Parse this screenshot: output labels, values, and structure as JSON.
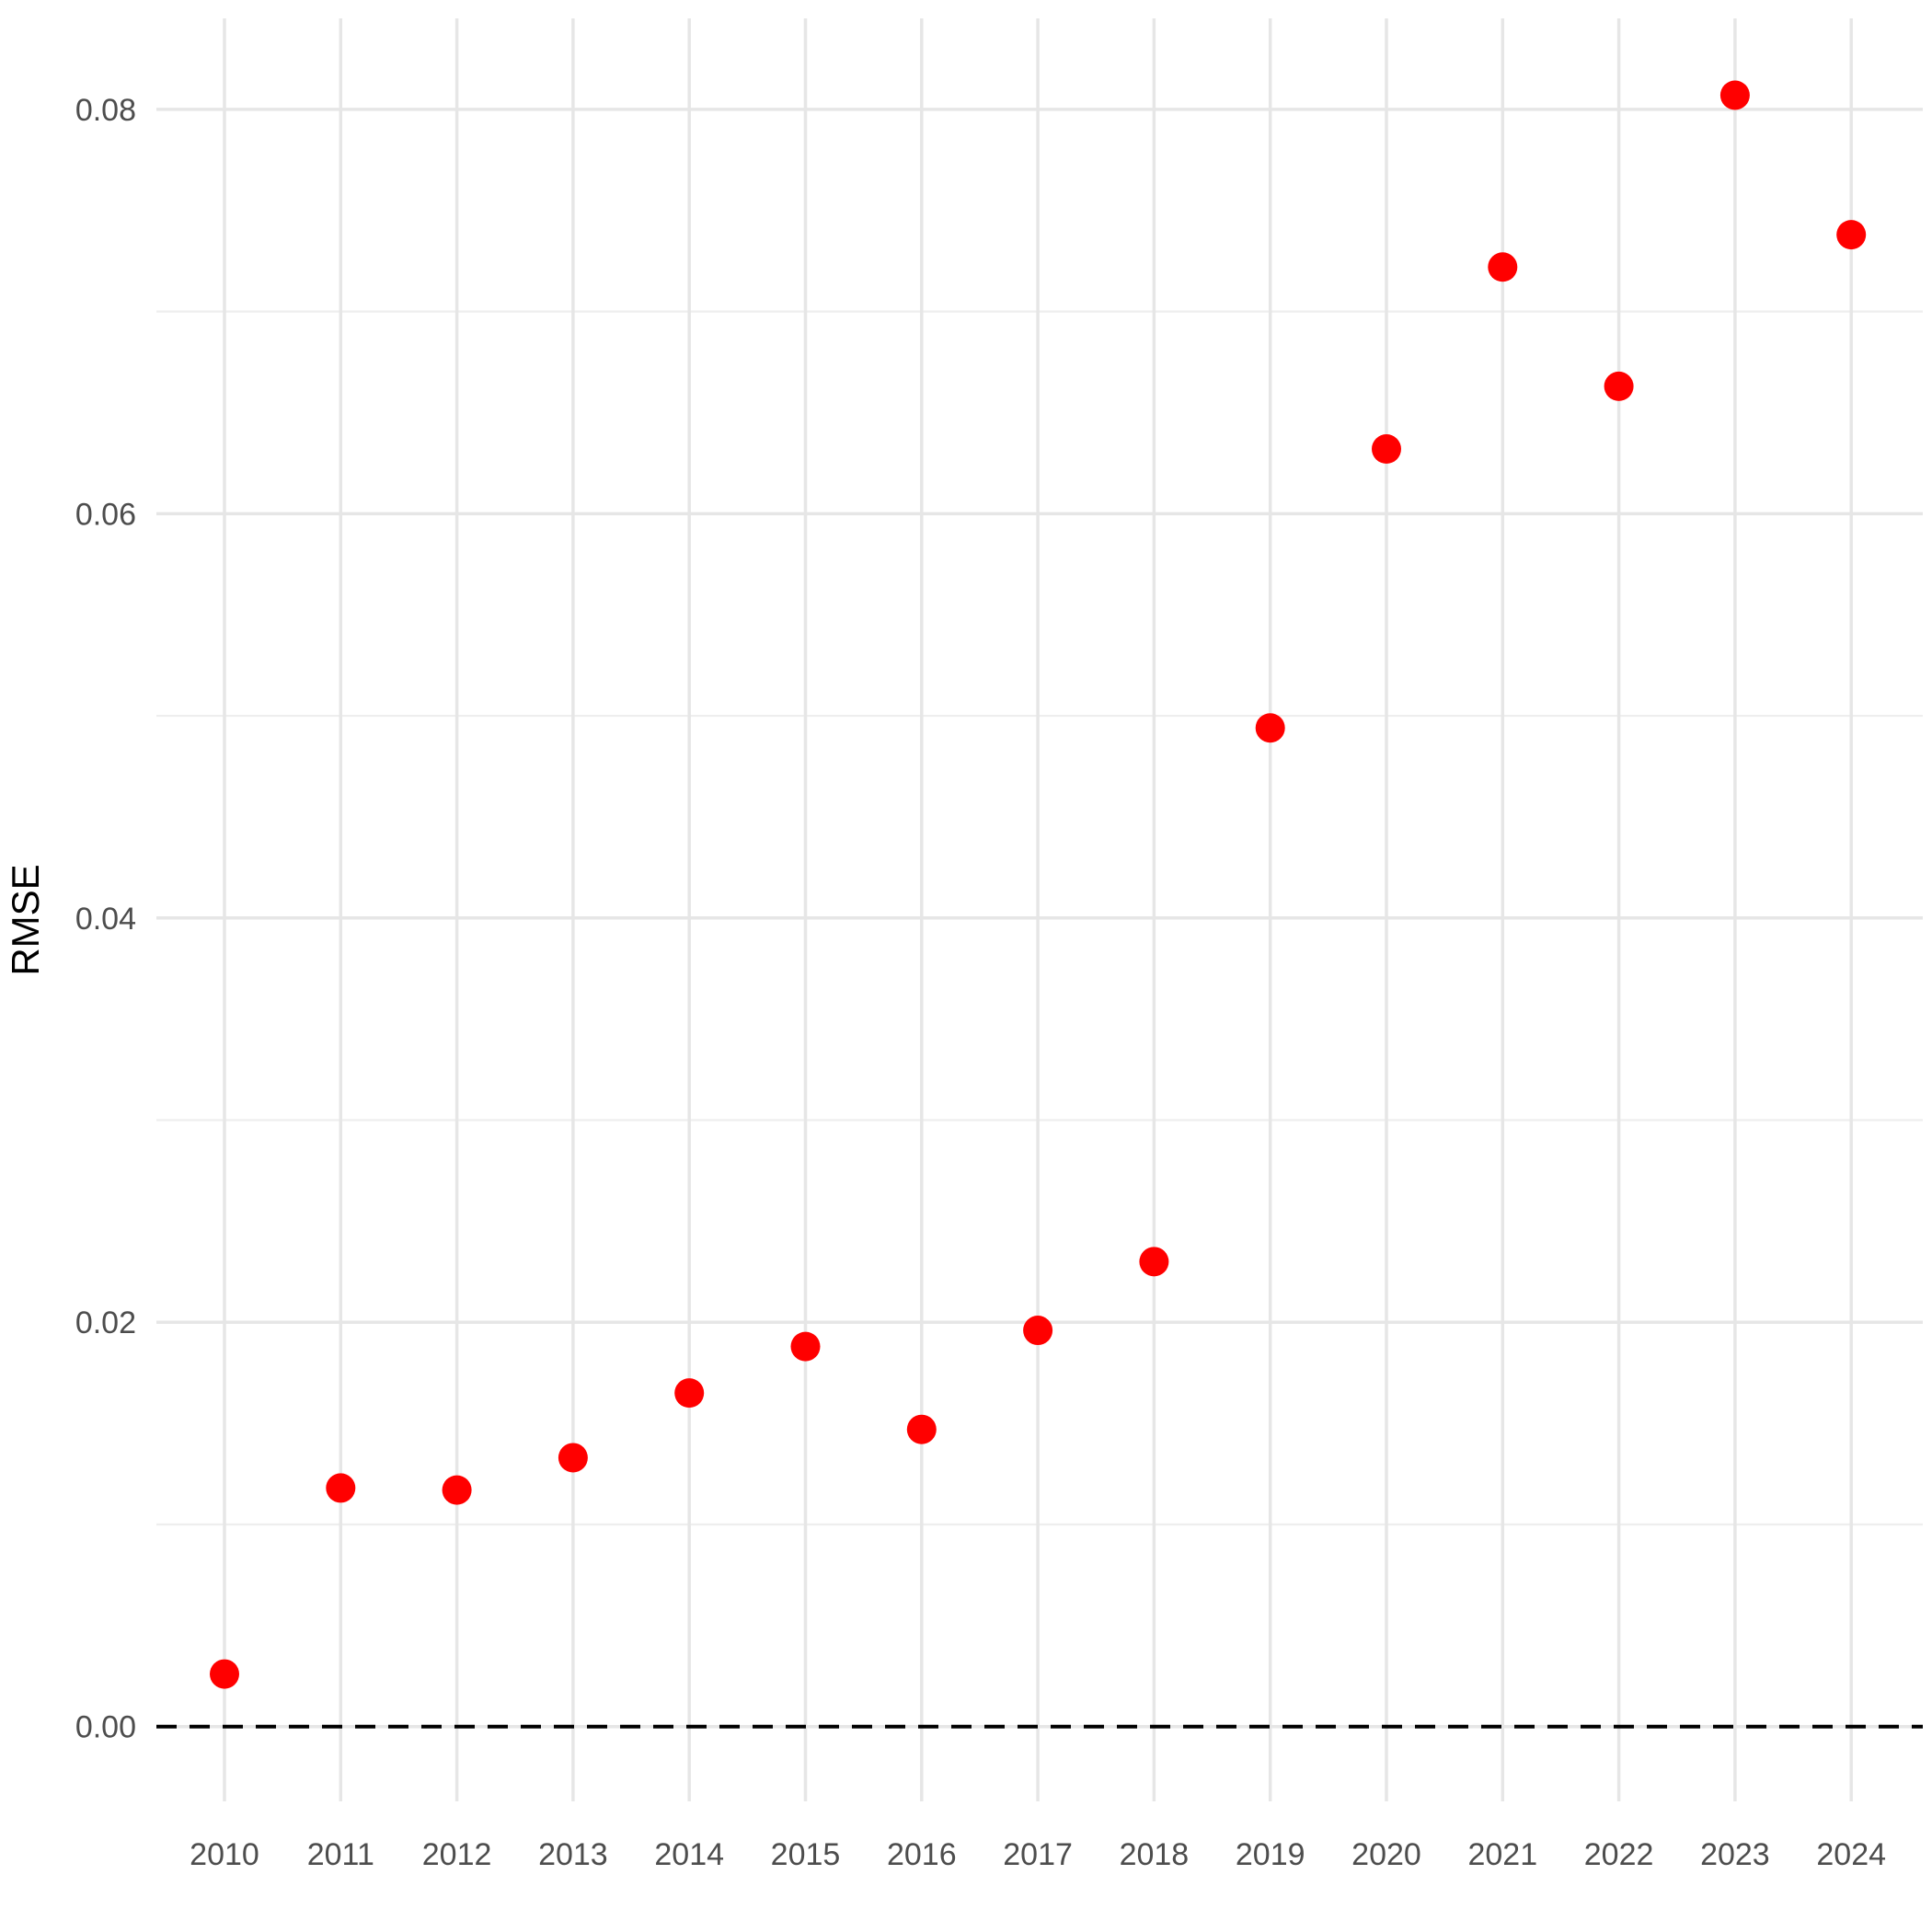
{
  "chart_data": {
    "type": "scatter",
    "title": "",
    "xlabel": "",
    "ylabel": "RMSE",
    "x": [
      "2010",
      "2011",
      "2012",
      "2013",
      "2014",
      "2015",
      "2016",
      "2017",
      "2018",
      "2019",
      "2020",
      "2021",
      "2022",
      "2023",
      "2024"
    ],
    "series": [
      {
        "values": [
          0.0026,
          0.0118,
          0.0117,
          0.0133,
          0.0165,
          0.0188,
          0.0147,
          0.0196,
          0.023,
          0.0494,
          0.0632,
          0.0722,
          0.0663,
          0.0807,
          0.0738
        ],
        "color": "#ff0000"
      }
    ],
    "ylim": [
      -0.0037,
      0.0845
    ],
    "yticks": [
      "0.00",
      "0.02",
      "0.04",
      "0.06",
      "0.08"
    ],
    "ytick_values": [
      0,
      0.02,
      0.04,
      0.06,
      0.08
    ],
    "reference_line": {
      "y": 0,
      "style": "dashed",
      "color": "#000000"
    },
    "grid": true,
    "legend": "none"
  }
}
